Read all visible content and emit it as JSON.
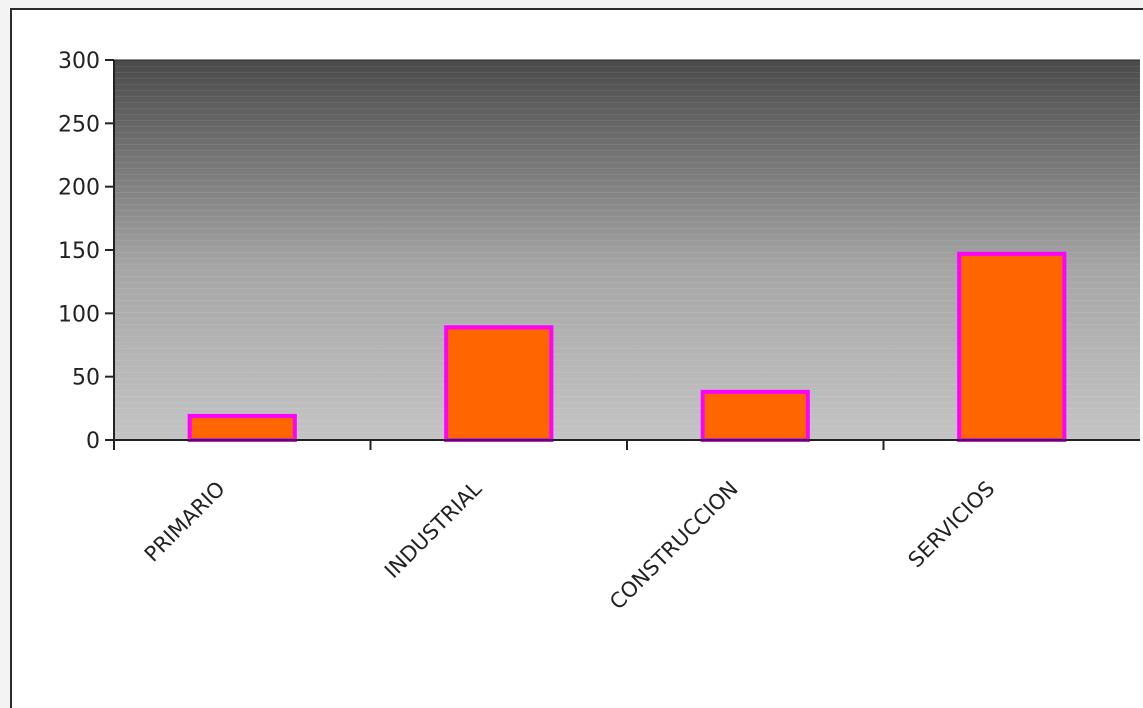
{
  "chart_data": {
    "type": "bar",
    "categories": [
      "PRIMARIO",
      "INDUSTRIAL",
      "CONSTRUCCION",
      "SERVICIOS"
    ],
    "values": [
      19,
      89,
      38,
      147
    ],
    "ylim": [
      0,
      300
    ],
    "yticks": [
      0,
      50,
      100,
      150,
      200,
      250,
      300
    ],
    "title": "",
    "xlabel": "",
    "ylabel": "",
    "grid": false,
    "bar_fill": "#ff6600",
    "bar_stroke": "#ff00ff",
    "plot_background_top": "#4a4a4a",
    "plot_background_bottom": "#c4c4c4"
  }
}
